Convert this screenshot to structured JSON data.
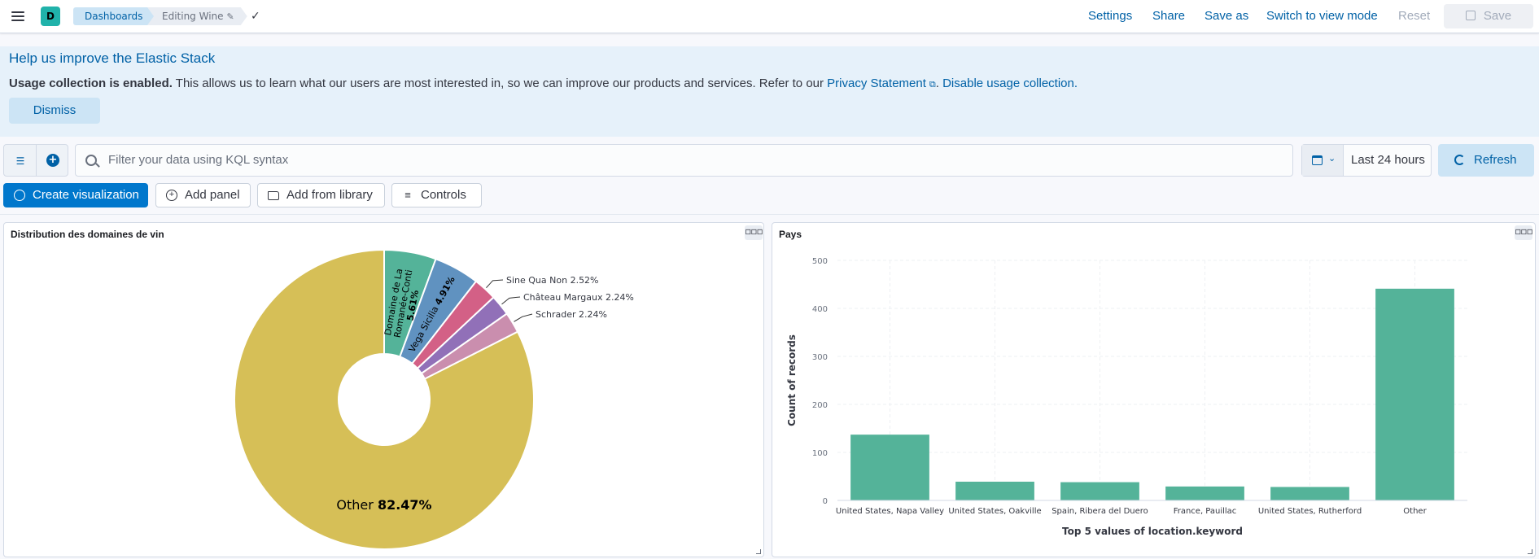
{
  "header": {
    "avatar_letter": "D",
    "breadcrumb_dashboards": "Dashboards",
    "breadcrumb_current": "Editing Wine",
    "links": {
      "settings": "Settings",
      "share": "Share",
      "save_as": "Save as",
      "switch_mode": "Switch to view mode",
      "reset": "Reset"
    },
    "save_label": "Save"
  },
  "callout": {
    "title": "Help us improve the Elastic Stack",
    "bold_text": "Usage collection is enabled.",
    "body_text": " This allows us to learn what our users are most interested in, so we can improve our products and services. Refer to our ",
    "privacy_link": "Privacy Statement",
    "sep": ". ",
    "disable_link": "Disable usage collection.",
    "dismiss": "Dismiss"
  },
  "query": {
    "placeholder": "Filter your data using KQL syntax",
    "date_range": "Last 24 hours",
    "refresh": "Refresh"
  },
  "toolbar": {
    "create_visualization": "Create visualization",
    "add_panel": "Add panel",
    "add_from_library": "Add from library",
    "controls": "Controls"
  },
  "panels": {
    "pie_title": "Distribution des domaines de vin",
    "bar_title": "Pays"
  },
  "chart_data": [
    {
      "type": "pie",
      "title": "Distribution des domaines de vin",
      "slices": [
        {
          "label": "Domaine de La Romanée-Conti",
          "value": 5.61,
          "color": "#54b399",
          "pct_text": "5.61%"
        },
        {
          "label": "Vega Sicilia",
          "value": 4.91,
          "color": "#6092c0",
          "pct_text": "4.91%"
        },
        {
          "label": "Sine Qua Non",
          "value": 2.52,
          "color": "#d36086",
          "pct_text": "2.52%"
        },
        {
          "label": "Château Margaux",
          "value": 2.24,
          "color": "#9170b8",
          "pct_text": "2.24%"
        },
        {
          "label": "Schrader",
          "value": 2.24,
          "color": "#ca8eae",
          "pct_text": "2.24%"
        },
        {
          "label": "Other",
          "value": 82.47,
          "color": "#d6bf57",
          "pct_text": "82.47%"
        }
      ]
    },
    {
      "type": "bar",
      "title": "Pays",
      "categories": [
        "United States, Napa Valley",
        "United States, Oakville",
        "Spain, Ribera del Duero",
        "France, Pauillac",
        "United States, Rutherford",
        "Other"
      ],
      "values": [
        137,
        39,
        38,
        29,
        28,
        441
      ],
      "xlabel": "Top 5 values of location.keyword",
      "ylabel": "Count of records",
      "ylim": [
        0,
        500
      ],
      "yticks": [
        0,
        100,
        200,
        300,
        400,
        500
      ],
      "color": "#54b399"
    }
  ]
}
